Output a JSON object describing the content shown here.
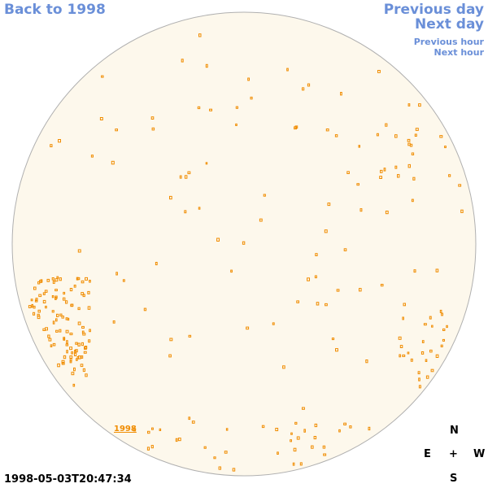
{
  "nav": {
    "back": "Back to 1998",
    "prev_day": "Previous day",
    "next_day": "Next day",
    "prev_hour": "Previous hour",
    "next_hour": "Next hour"
  },
  "timestamp": "1998-05-03T20:47:34",
  "year_link": "1998",
  "compass": {
    "n": "N",
    "e": "E",
    "center": "+",
    "w": "W",
    "s": "S"
  },
  "colors": {
    "sky": "#fdf8ec",
    "marks": "#f08c00",
    "nav": "#6a8fd8"
  }
}
